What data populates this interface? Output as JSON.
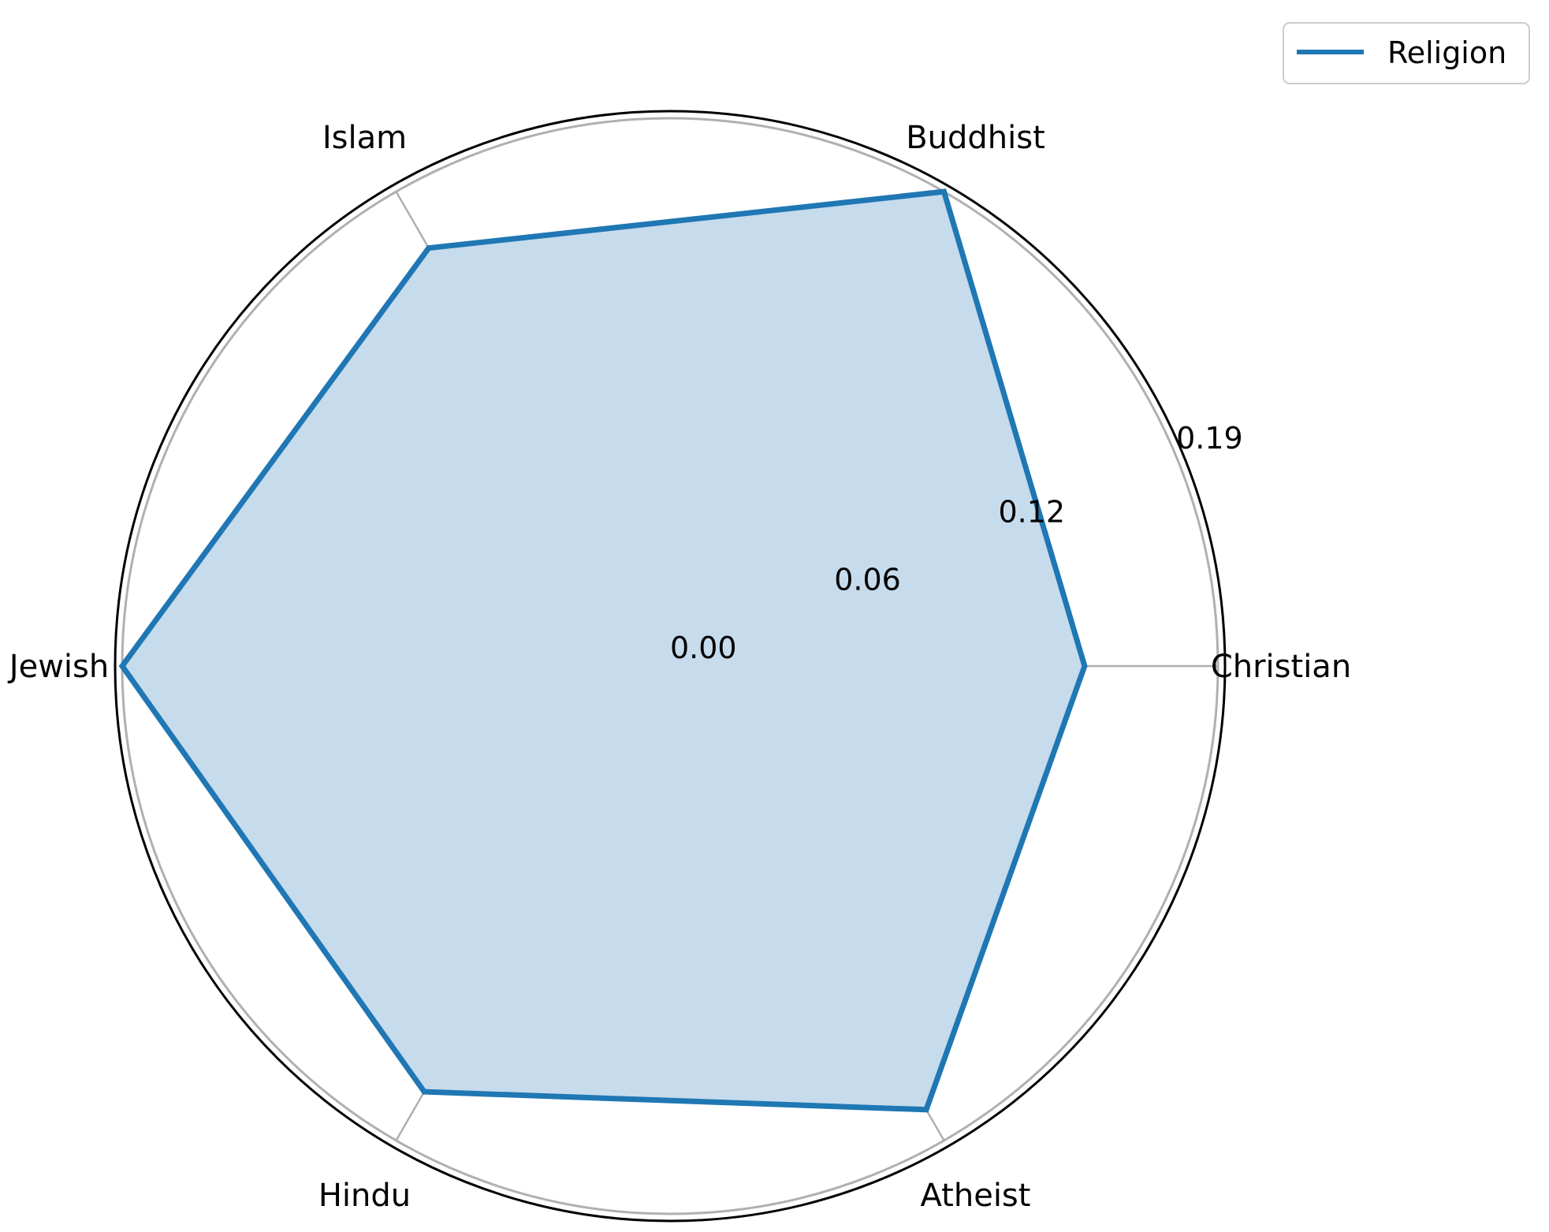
{
  "chart_data": {
    "type": "radar",
    "categories": [
      "Christian",
      "Buddhist",
      "Islam",
      "Jewish",
      "Hindu",
      "Atheist"
    ],
    "series": [
      {
        "name": "Religion",
        "values": [
          0.14,
          0.185,
          0.163,
          0.185,
          0.166,
          0.173
        ]
      }
    ],
    "rlim": [
      0,
      0.185
    ],
    "r_ticks": [
      "0.00",
      "0.06",
      "0.12",
      "0.19"
    ],
    "r_tick_values": [
      0,
      0.06,
      0.12,
      0.185
    ],
    "grid": true,
    "legend_position": "top-right",
    "colors": {
      "series": "#1f77b4",
      "fill": "#c6dbec",
      "grid": "#b0b0b0",
      "outline": "#000000"
    }
  }
}
